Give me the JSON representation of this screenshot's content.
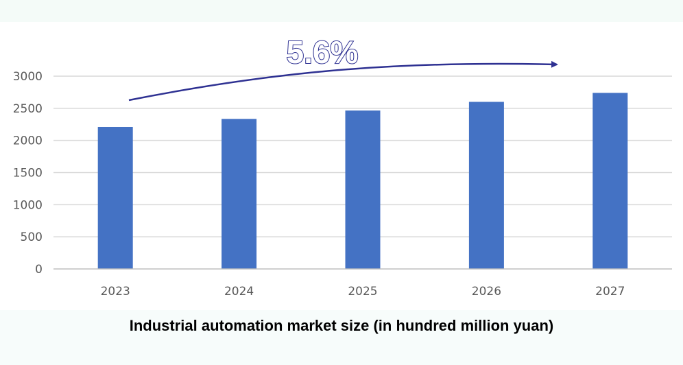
{
  "caption": "Industrial automation market size (in hundred million yuan)",
  "chart_data": {
    "type": "bar",
    "categories": [
      "2023",
      "2024",
      "2025",
      "2026",
      "2027"
    ],
    "values": [
      2210,
      2335,
      2465,
      2600,
      2740
    ],
    "ylim": [
      0,
      3000
    ],
    "yticks": [
      "0",
      "500",
      "1000",
      "1500",
      "2000",
      "2500",
      "3000"
    ],
    "grid": true,
    "legend": "none",
    "annotation": {
      "text": "5.6%"
    },
    "colors": {
      "bar": "#4472c4",
      "arrow": "#2e3192",
      "grid": "#d9d9d9",
      "axis": "#bfbfbf",
      "tick_text": "#595959"
    }
  }
}
